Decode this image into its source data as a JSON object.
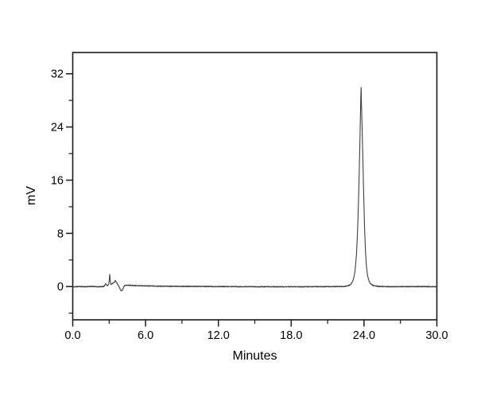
{
  "figure": {
    "background": "#ffffff",
    "frame_color": "#1b1b1b",
    "tick_color": "#1b1b1b",
    "trace_color": "#3f3f3f",
    "text_color": "#000000"
  },
  "chart_data": {
    "type": "line",
    "xlabel": "Minutes",
    "ylabel": "mV",
    "xlim": [
      0,
      30
    ],
    "ylim": [
      -5.0,
      35.2
    ],
    "grid": false,
    "legend": "none",
    "x_major_ticks": [
      0,
      6,
      12,
      18,
      24,
      30
    ],
    "x_major_tick_labels": [
      "0.0",
      "6.0",
      "12.0",
      "18.0",
      "24.0",
      "30.0"
    ],
    "x_minor_ticks": [
      3,
      9,
      15,
      21,
      27
    ],
    "y_major_ticks": [
      0,
      8,
      16,
      24,
      32
    ],
    "y_major_tick_labels": [
      "0",
      "8",
      "16",
      "24",
      "32"
    ],
    "y_minor_ticks": [
      -4,
      4,
      12,
      20,
      28
    ],
    "noise_amplitude_mV": 0.06,
    "peaks_summary": [
      {
        "t_minutes": 3.05,
        "height_mV": 2.0
      },
      {
        "t_minutes": 3.5,
        "height_mV": 1.0
      },
      {
        "t_minutes": 4.0,
        "height_mV": -0.6
      },
      {
        "t_minutes": 23.75,
        "height_mV": 29.9
      }
    ],
    "series": [
      {
        "name": "chromatogram-trace",
        "points": [
          [
            0.0,
            -0.05
          ],
          [
            0.5,
            0.0
          ],
          [
            1.0,
            -0.03
          ],
          [
            1.5,
            0.02
          ],
          [
            2.0,
            -0.02
          ],
          [
            2.5,
            0.0
          ],
          [
            2.62,
            0.1
          ],
          [
            2.7,
            0.45
          ],
          [
            2.78,
            0.25
          ],
          [
            2.88,
            0.12
          ],
          [
            2.96,
            0.3
          ],
          [
            3.02,
            1.1
          ],
          [
            3.05,
            1.95
          ],
          [
            3.09,
            0.8
          ],
          [
            3.14,
            0.35
          ],
          [
            3.22,
            0.4
          ],
          [
            3.32,
            0.5
          ],
          [
            3.42,
            0.6
          ],
          [
            3.5,
            0.95
          ],
          [
            3.56,
            0.75
          ],
          [
            3.64,
            0.5
          ],
          [
            3.72,
            0.3
          ],
          [
            3.82,
            0.0
          ],
          [
            3.92,
            -0.45
          ],
          [
            4.0,
            -0.62
          ],
          [
            4.08,
            -0.55
          ],
          [
            4.16,
            -0.2
          ],
          [
            4.25,
            0.12
          ],
          [
            4.4,
            0.2
          ],
          [
            4.8,
            0.17
          ],
          [
            5.5,
            0.12
          ],
          [
            6.5,
            0.08
          ],
          [
            8.0,
            0.04
          ],
          [
            10.0,
            0.02
          ],
          [
            12.0,
            0.0
          ],
          [
            15.0,
            -0.02
          ],
          [
            18.0,
            -0.03
          ],
          [
            20.0,
            -0.02
          ],
          [
            22.0,
            0.0
          ],
          [
            22.4,
            0.02
          ],
          [
            22.7,
            0.12
          ],
          [
            22.9,
            0.3
          ],
          [
            23.1,
            0.9
          ],
          [
            23.25,
            2.2
          ],
          [
            23.38,
            4.8
          ],
          [
            23.48,
            9.0
          ],
          [
            23.57,
            14.5
          ],
          [
            23.64,
            20.0
          ],
          [
            23.7,
            25.5
          ],
          [
            23.745,
            29.4
          ],
          [
            23.76,
            29.9
          ],
          [
            23.78,
            28.0
          ],
          [
            23.84,
            24.0
          ],
          [
            23.9,
            19.5
          ],
          [
            23.97,
            14.0
          ],
          [
            24.04,
            9.0
          ],
          [
            24.12,
            5.2
          ],
          [
            24.2,
            3.0
          ],
          [
            24.3,
            1.6
          ],
          [
            24.42,
            0.8
          ],
          [
            24.55,
            0.4
          ],
          [
            24.7,
            0.2
          ],
          [
            24.9,
            0.1
          ],
          [
            25.2,
            0.03
          ],
          [
            25.6,
            0.0
          ],
          [
            27.0,
            -0.02
          ],
          [
            28.5,
            0.0
          ],
          [
            30.0,
            -0.02
          ]
        ]
      }
    ]
  }
}
